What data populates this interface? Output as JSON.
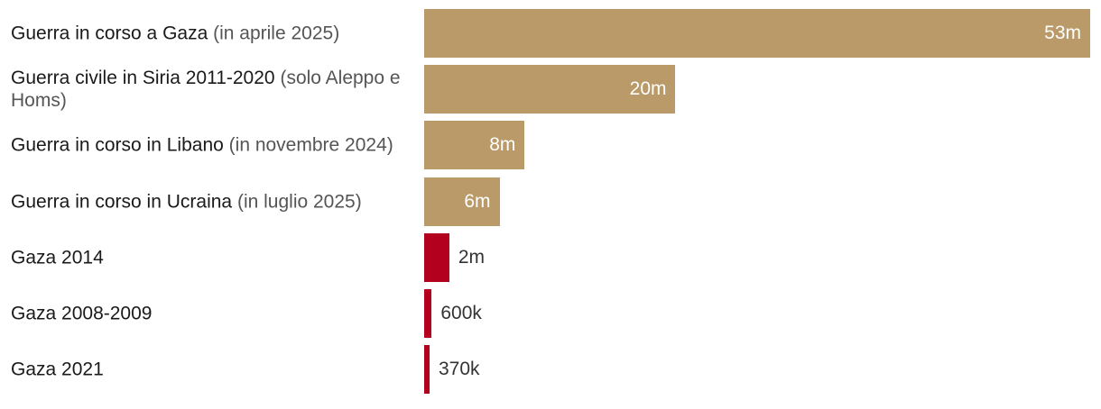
{
  "chart_data": {
    "type": "bar",
    "orientation": "horizontal",
    "title": "",
    "xlabel": "",
    "ylabel": "",
    "unit": "",
    "categories": [
      {
        "main": "Guerra in corso a Gaza",
        "sub": "(in aprile 2025)"
      },
      {
        "main": "Guerra civile in Siria 2011-2020",
        "sub": "(solo Aleppo e Homs)"
      },
      {
        "main": "Guerra in corso in Libano",
        "sub": "(in novembre 2024)"
      },
      {
        "main": "Guerra in corso in Ucraina",
        "sub": "(in luglio 2025)"
      },
      {
        "main": "Gaza 2014",
        "sub": ""
      },
      {
        "main": "Gaza 2008-2009",
        "sub": ""
      },
      {
        "main": "Gaza 2021",
        "sub": ""
      }
    ],
    "values": [
      53000000,
      20000000,
      8000000,
      6000000,
      2000000,
      600000,
      370000
    ],
    "value_labels": [
      "53m",
      "20m",
      "8m",
      "6m",
      "2m",
      "600k",
      "370k"
    ],
    "bar_colors": [
      "#b99a68",
      "#b99a68",
      "#b99a68",
      "#b99a68",
      "#b2001e",
      "#b2001e",
      "#b2001e"
    ],
    "grid": false,
    "legend": "none"
  }
}
